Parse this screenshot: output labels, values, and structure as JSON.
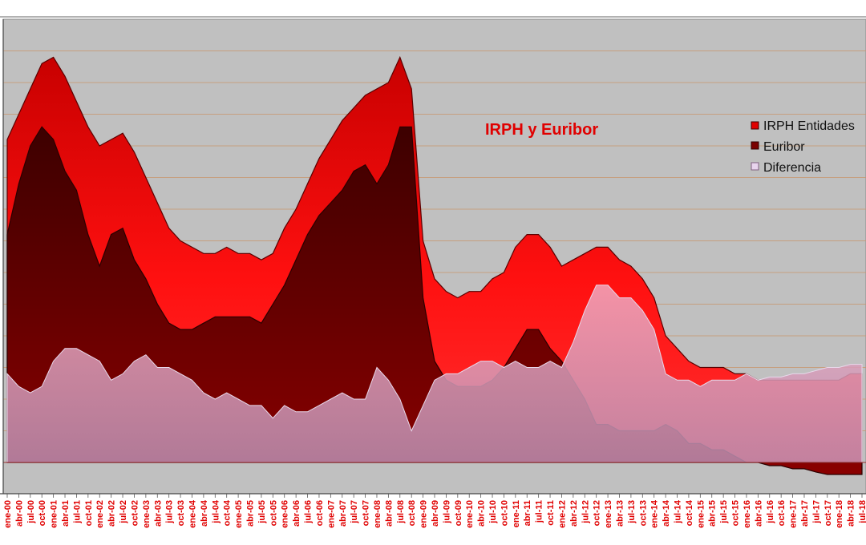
{
  "chart_data": {
    "type": "area",
    "title": "IRPH y Euribor",
    "xlabel": "",
    "ylabel": "",
    "grid": true,
    "legend_position": "top-right",
    "x_tick_labels": [
      "ene-00",
      "abr-00",
      "jul-00",
      "oct-00",
      "ene-01",
      "abr-01",
      "jul-01",
      "oct-01",
      "ene-02",
      "abr-02",
      "jul-02",
      "oct-02",
      "ene-03",
      "abr-03",
      "jul-03",
      "oct-03",
      "ene-04",
      "abr-04",
      "jul-04",
      "oct-04",
      "ene-05",
      "abr-05",
      "jul-05",
      "oct-05",
      "ene-06",
      "abr-06",
      "jul-06",
      "oct-06",
      "ene-07",
      "abr-07",
      "jul-07",
      "oct-07",
      "ene-08",
      "abr-08",
      "jul-08",
      "oct-08",
      "ene-09",
      "abr-09",
      "jul-09",
      "oct-09",
      "ene-10",
      "abr-10",
      "jul-10",
      "oct-10",
      "ene-11",
      "abr-11",
      "jul-11",
      "oct-11",
      "ene-12",
      "abr-12",
      "jul-12",
      "oct-12",
      "ene-13",
      "abr-13",
      "jul-13",
      "oct-13",
      "ene-14",
      "abr-14",
      "jul-14",
      "oct-14",
      "ene-15",
      "abr-15",
      "jul-15",
      "oct-15",
      "ene-16",
      "abr-16",
      "jul-16",
      "oct-16",
      "ene-17",
      "abr-17",
      "jul-17",
      "oct-17",
      "ene-18",
      "abr-18",
      "jul-18"
    ],
    "series": [
      {
        "name": "IRPH Entidades",
        "color": "#ff1a1a",
        "values": [
          5.1,
          5.5,
          5.9,
          6.3,
          6.4,
          6.1,
          5.7,
          5.3,
          5.0,
          5.1,
          5.2,
          4.9,
          4.5,
          4.1,
          3.7,
          3.5,
          3.4,
          3.3,
          3.3,
          3.4,
          3.3,
          3.3,
          3.2,
          3.3,
          3.7,
          4.0,
          4.4,
          4.8,
          5.1,
          5.4,
          5.6,
          5.8,
          5.9,
          6.0,
          6.4,
          5.9,
          3.5,
          2.9,
          2.7,
          2.6,
          2.7,
          2.7,
          2.9,
          3.0,
          3.4,
          3.6,
          3.6,
          3.4,
          3.1,
          3.2,
          3.3,
          3.4,
          3.4,
          3.2,
          3.1,
          2.9,
          2.6,
          2.0,
          1.8,
          1.6,
          1.5,
          1.5,
          1.5,
          1.4,
          1.4,
          1.3,
          1.3,
          1.3,
          1.3,
          1.3,
          1.3,
          1.3,
          1.3,
          1.4,
          1.4
        ]
      },
      {
        "name": "Euribor",
        "color": "#7a0000",
        "values": [
          3.6,
          4.4,
          5.0,
          5.3,
          5.1,
          4.6,
          4.3,
          3.6,
          3.1,
          3.6,
          3.7,
          3.2,
          2.9,
          2.5,
          2.2,
          2.1,
          2.1,
          2.2,
          2.3,
          2.3,
          2.3,
          2.3,
          2.2,
          2.5,
          2.8,
          3.2,
          3.6,
          3.9,
          4.1,
          4.3,
          4.6,
          4.7,
          4.4,
          4.7,
          5.3,
          5.3,
          2.6,
          1.6,
          1.3,
          1.2,
          1.2,
          1.2,
          1.3,
          1.5,
          1.8,
          2.1,
          2.1,
          1.8,
          1.6,
          1.3,
          1.0,
          0.6,
          0.6,
          0.5,
          0.5,
          0.5,
          0.5,
          0.6,
          0.5,
          0.3,
          0.3,
          0.2,
          0.2,
          0.1,
          0.0,
          0.0,
          -0.05,
          -0.05,
          -0.1,
          -0.1,
          -0.15,
          -0.19,
          -0.19,
          -0.19,
          -0.19
        ]
      },
      {
        "name": "Diferencia",
        "color": "#d8b4d0",
        "values": [
          1.4,
          1.2,
          1.1,
          1.2,
          1.6,
          1.8,
          1.8,
          1.7,
          1.6,
          1.3,
          1.4,
          1.6,
          1.7,
          1.5,
          1.5,
          1.4,
          1.3,
          1.1,
          1.0,
          1.1,
          1.0,
          0.9,
          0.9,
          0.7,
          0.9,
          0.8,
          0.8,
          0.9,
          1.0,
          1.1,
          1.0,
          1.0,
          1.5,
          1.3,
          1.0,
          0.5,
          0.9,
          1.3,
          1.4,
          1.4,
          1.5,
          1.6,
          1.6,
          1.5,
          1.6,
          1.5,
          1.5,
          1.6,
          1.5,
          1.9,
          2.4,
          2.8,
          2.8,
          2.6,
          2.6,
          2.4,
          2.1,
          1.4,
          1.3,
          1.3,
          1.2,
          1.3,
          1.3,
          1.3,
          1.4,
          1.3,
          1.35,
          1.35,
          1.4,
          1.4,
          1.45,
          1.5,
          1.5,
          1.55,
          1.55
        ]
      }
    ]
  }
}
